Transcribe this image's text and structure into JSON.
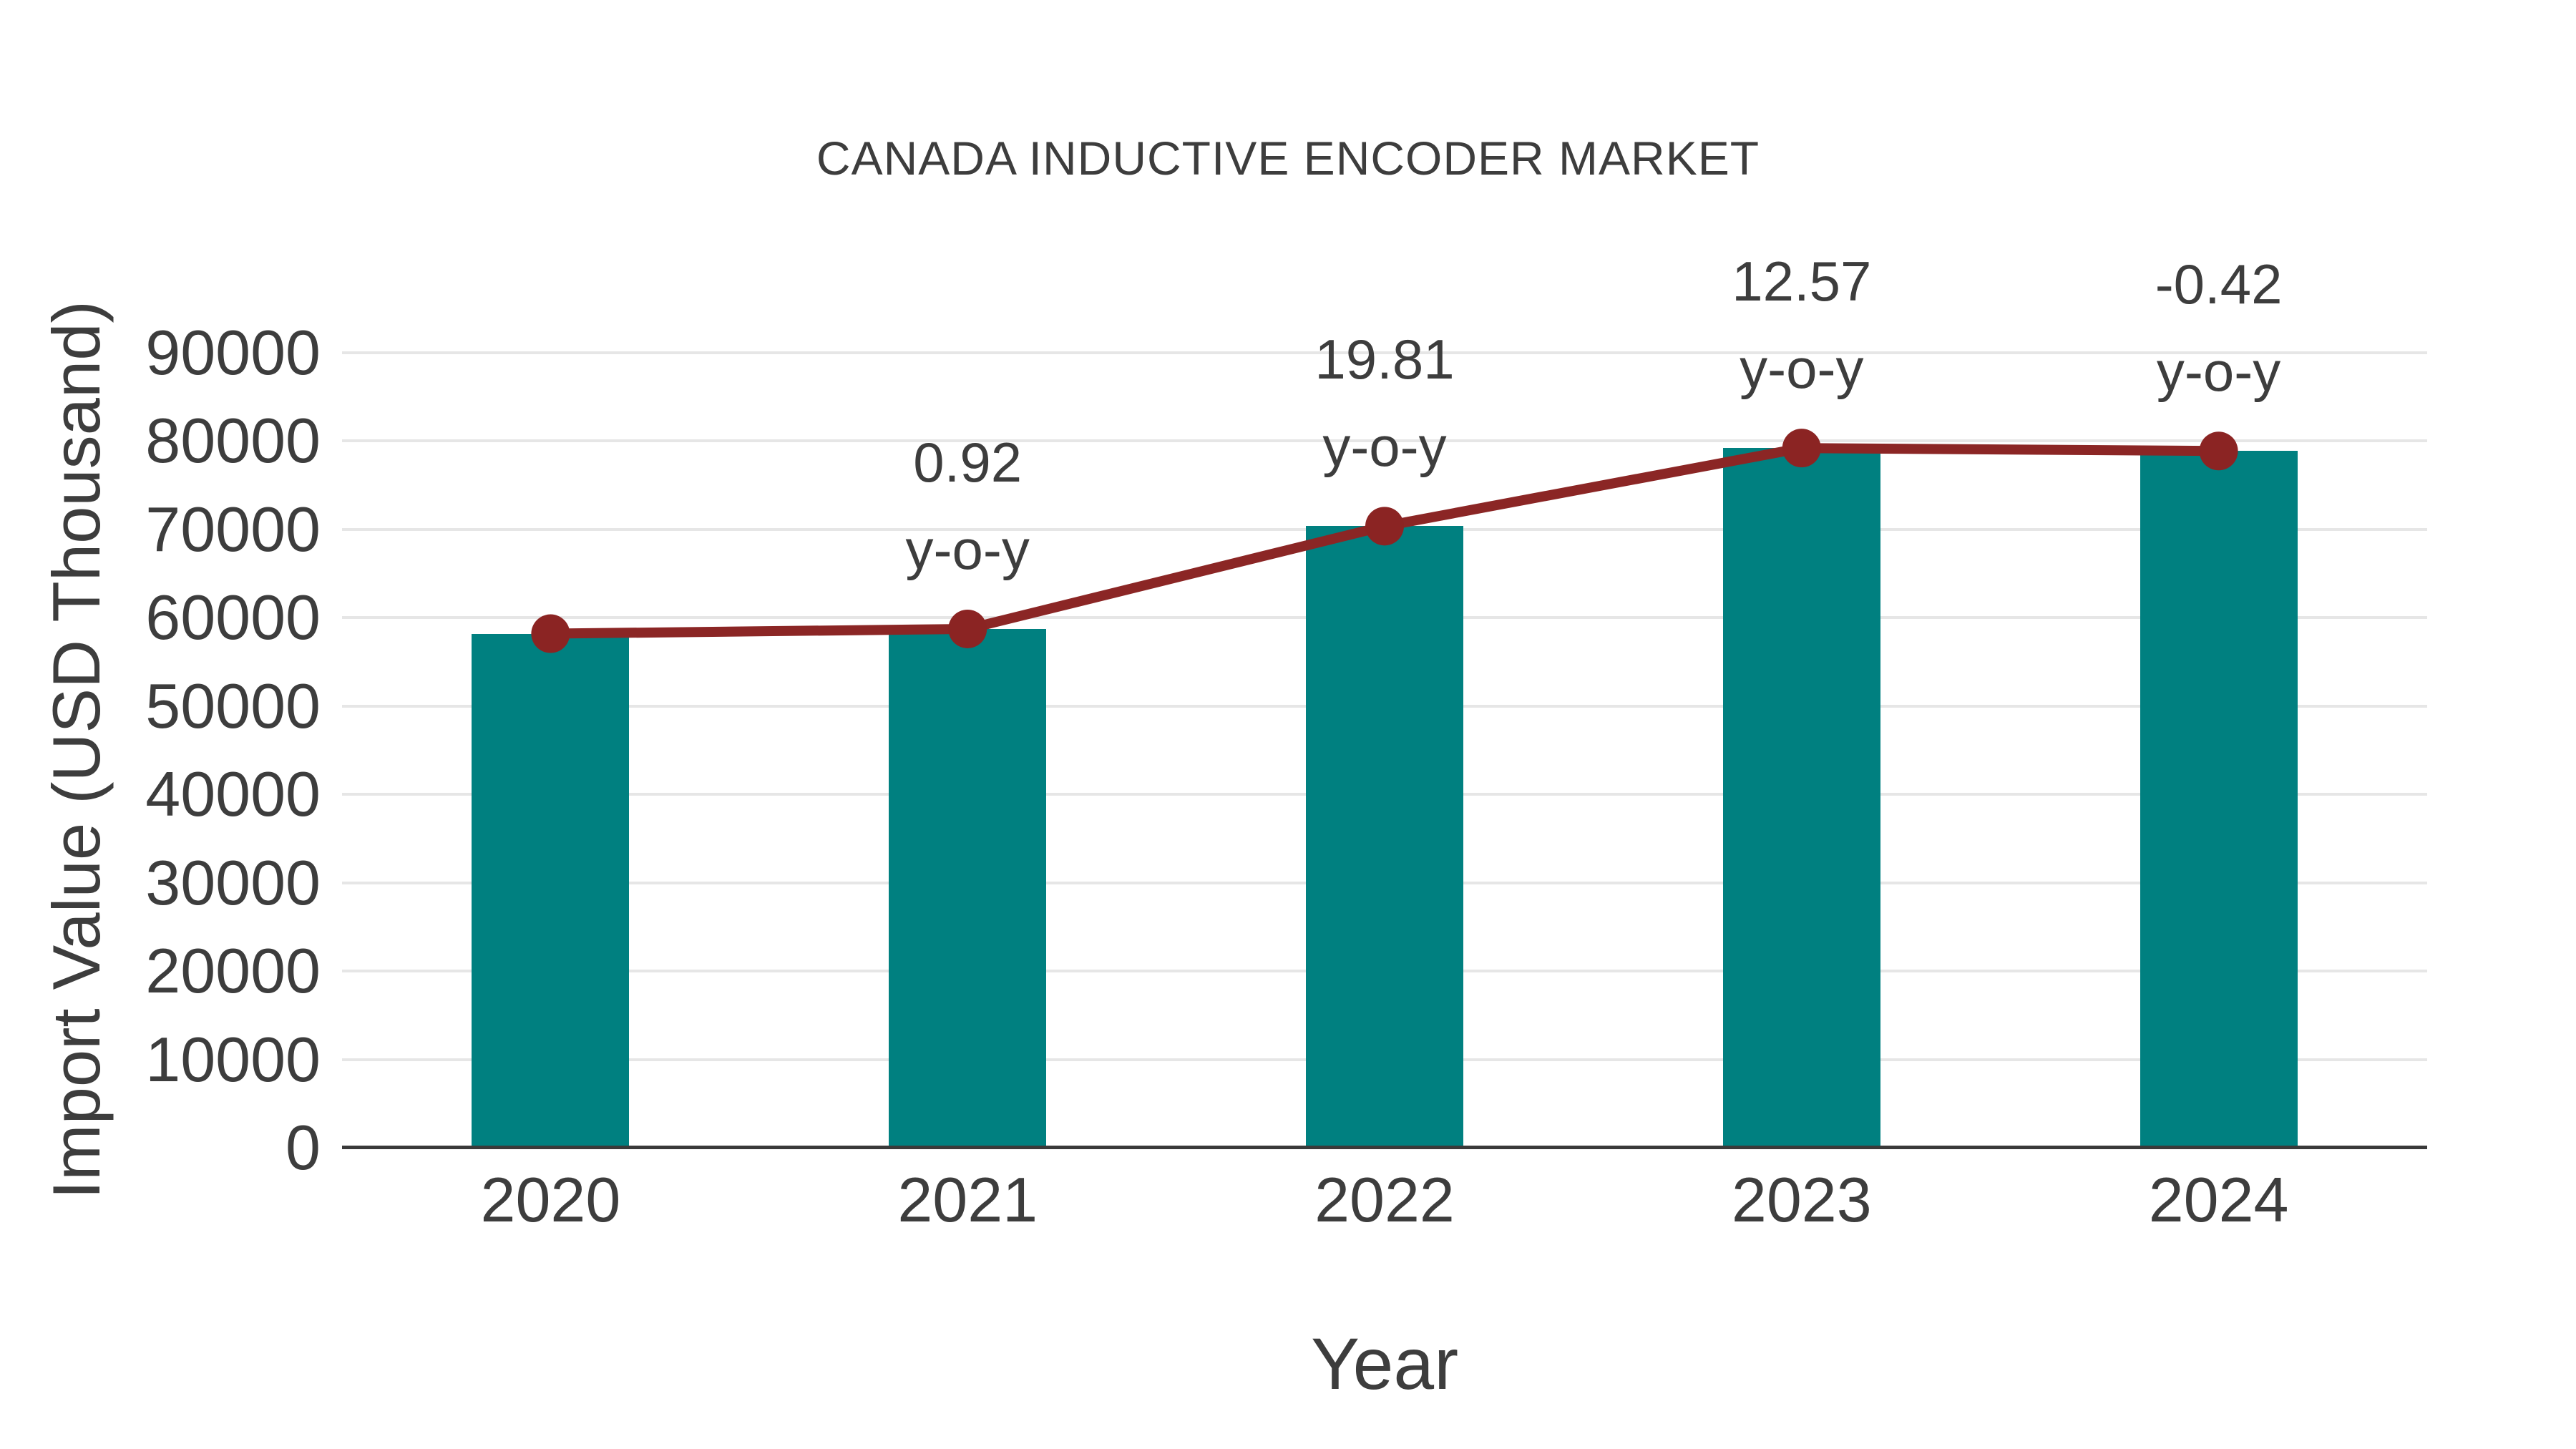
{
  "chart": {
    "title": "CANADA INDUCTIVE ENCODER MARKET",
    "x_axis_title": "Year",
    "y_axis_title": "Import Value (USD Thousand)"
  },
  "chart_data": {
    "type": "bar",
    "title": "CANADA INDUCTIVE ENCODER MARKET",
    "xlabel": "Year",
    "ylabel": "Import Value (USD Thousand)",
    "categories": [
      "2020",
      "2021",
      "2022",
      "2023",
      "2024"
    ],
    "series": [
      {
        "name": "Import Value (USD Thousand)",
        "type": "bar",
        "values": [
          58200,
          58735,
          70370,
          79213,
          78880
        ]
      },
      {
        "name": "y-o-y trend line",
        "type": "line",
        "values": [
          58200,
          58735,
          70370,
          79213,
          78880
        ]
      }
    ],
    "annotations": [
      {
        "category_index": 1,
        "lines": [
          "0.92",
          "y-o-y"
        ]
      },
      {
        "category_index": 2,
        "lines": [
          "19.81",
          "y-o-y"
        ]
      },
      {
        "category_index": 3,
        "lines": [
          "12.57",
          "y-o-y"
        ]
      },
      {
        "category_index": 4,
        "lines": [
          "-0.42",
          "y-o-y"
        ]
      }
    ],
    "ylim": [
      0,
      90000
    ],
    "ytick_step": 10000,
    "yticks": [
      0,
      10000,
      20000,
      30000,
      40000,
      50000,
      60000,
      70000,
      80000,
      90000
    ],
    "grid": true,
    "legend": false,
    "colors": {
      "bar": "#008080",
      "line": "#8b2625",
      "marker": "#8b2423",
      "text": "#3d3d3d",
      "grid": "#e6e6e6",
      "axis": "#3a3a3a",
      "background": "#ffffff"
    }
  }
}
